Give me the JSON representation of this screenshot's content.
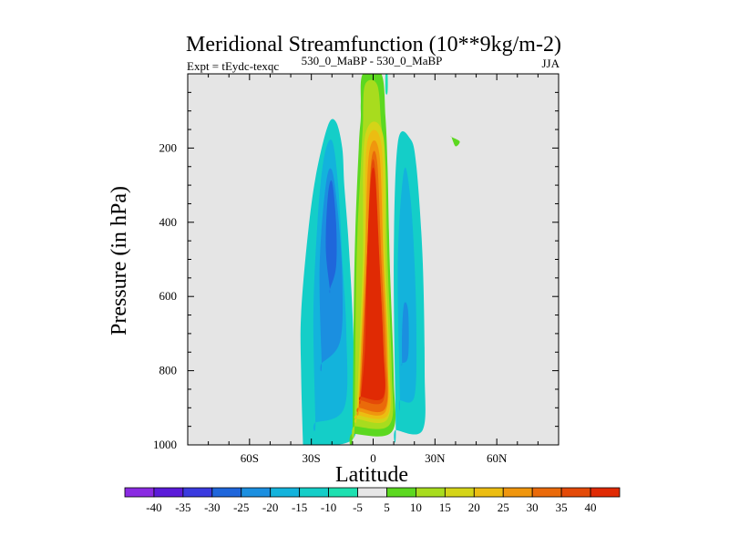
{
  "chart_data": {
    "type": "contour",
    "title": "Meridional Streamfunction (10**9kg/m-2)",
    "subtitle_left": "Expt = tEydc-texqc",
    "subtitle_center": "530_0_MaBP - 530_0_MaBP",
    "subtitle_right": "JJA",
    "xlabel": "Latitude",
    "ylabel": "Pressure (in hPa)",
    "xlim": [
      -90,
      90
    ],
    "ylim": [
      1000,
      0
    ],
    "xticks": [
      {
        "value": -60,
        "label": "60S"
      },
      {
        "value": -30,
        "label": "30S"
      },
      {
        "value": 0,
        "label": "0"
      },
      {
        "value": 30,
        "label": "30N"
      },
      {
        "value": 60,
        "label": "60N"
      }
    ],
    "yticks": [
      {
        "value": 200,
        "label": "200"
      },
      {
        "value": 400,
        "label": "400"
      },
      {
        "value": 600,
        "label": "600"
      },
      {
        "value": 800,
        "label": "800"
      },
      {
        "value": 1000,
        "label": "1000"
      }
    ],
    "background_color": "#e5e5e5",
    "colorbar": {
      "labels": [
        "-40",
        "-35",
        "-30",
        "-25",
        "-20",
        "-15",
        "-10",
        "-5",
        "5",
        "10",
        "15",
        "20",
        "25",
        "30",
        "35",
        "40"
      ],
      "colors": [
        "#8a2be2",
        "#5b1bd9",
        "#3a3adf",
        "#1f66db",
        "#1b8fe0",
        "#13b3dc",
        "#14cec8",
        "#1de0b0",
        "#e6e6e6",
        "#5cd820",
        "#a8dc1e",
        "#d4d418",
        "#ecbd12",
        "#f0960e",
        "#ea6a0a",
        "#e44a08",
        "#e02a04"
      ]
    },
    "cells": [
      {
        "name": "southern-cell-outer",
        "level": -10,
        "color": "#14cec8",
        "lat": [
          -34,
          -10,
          -9,
          -10,
          -12,
          -14,
          -15,
          -18,
          -22,
          -28,
          -32,
          -35,
          -35,
          -34
        ],
        "p": [
          1000,
          985,
          850,
          650,
          450,
          300,
          200,
          130,
          140,
          280,
          450,
          650,
          800,
          1000
        ]
      },
      {
        "name": "southern-cell-mid",
        "level": -15,
        "color": "#13b3dc",
        "lat": [
          -28,
          -14,
          -13,
          -15,
          -17,
          -20,
          -24,
          -27,
          -29,
          -28
        ],
        "p": [
          940,
          900,
          700,
          500,
          300,
          180,
          230,
          400,
          650,
          940
        ]
      },
      {
        "name": "southern-cell-inner",
        "level": -20,
        "color": "#1b8fe0",
        "lat": [
          -25,
          -16,
          -15,
          -17,
          -20,
          -23,
          -26,
          -25
        ],
        "p": [
          780,
          720,
          550,
          380,
          260,
          300,
          520,
          780
        ]
      },
      {
        "name": "southern-cell-core",
        "level": -25,
        "color": "#1f66db",
        "lat": [
          -21,
          -18,
          -18,
          -20,
          -22,
          -23,
          -21
        ],
        "p": [
          580,
          520,
          400,
          290,
          330,
          470,
          580
        ]
      },
      {
        "name": "equatorial-cell-5",
        "level": 5,
        "color": "#5cd820",
        "lat": [
          -10,
          9,
          10,
          8,
          7,
          6,
          4,
          -5,
          -6,
          -6,
          -7,
          -9,
          -10
        ],
        "p": [
          970,
          965,
          820,
          500,
          250,
          120,
          0,
          0,
          80,
          120,
          200,
          500,
          970
        ]
      },
      {
        "name": "equatorial-cell-10",
        "level": 10,
        "color": "#a8dc1e",
        "lat": [
          -9,
          8,
          9,
          7,
          6,
          4,
          2,
          -4,
          -5,
          -6,
          -8,
          -9
        ],
        "p": [
          950,
          945,
          800,
          500,
          250,
          140,
          30,
          30,
          140,
          250,
          500,
          950
        ]
      },
      {
        "name": "equatorial-cell-15",
        "level": 15,
        "color": "#d4d418",
        "lat": [
          -8,
          7,
          8,
          6,
          5,
          -4,
          -5,
          -7,
          -8
        ],
        "p": [
          930,
          930,
          780,
          500,
          170,
          170,
          500,
          780,
          930
        ]
      },
      {
        "name": "equatorial-cell-20",
        "level": 20,
        "color": "#ecbd12",
        "lat": [
          -8,
          7,
          7,
          5,
          4,
          -3,
          -4,
          -6,
          -8
        ],
        "p": [
          920,
          920,
          780,
          500,
          190,
          190,
          500,
          780,
          920
        ]
      },
      {
        "name": "equatorial-cell-25",
        "level": 25,
        "color": "#f0960e",
        "lat": [
          -7,
          6,
          7,
          5,
          3,
          -2,
          -4,
          -6,
          -7
        ],
        "p": [
          910,
          910,
          760,
          500,
          215,
          215,
          500,
          760,
          910
        ]
      },
      {
        "name": "equatorial-cell-30",
        "level": 30,
        "color": "#ea6a0a",
        "lat": [
          -7,
          6,
          6,
          4,
          2,
          -1,
          -3,
          -5,
          -7
        ],
        "p": [
          900,
          900,
          740,
          500,
          240,
          240,
          500,
          740,
          900
        ]
      },
      {
        "name": "equatorial-cell-35",
        "level": 35,
        "color": "#e44a08",
        "lat": [
          -6,
          5,
          5,
          3,
          1,
          -1,
          -3,
          -5,
          -6
        ],
        "p": [
          880,
          880,
          740,
          500,
          260,
          260,
          500,
          740,
          880
        ]
      },
      {
        "name": "equatorial-cell-40",
        "level": 40,
        "color": "#e02a04",
        "lat": [
          -6,
          5,
          5,
          3,
          1,
          -1,
          -3,
          -4,
          -6
        ],
        "p": [
          870,
          870,
          740,
          500,
          280,
          280,
          500,
          740,
          870
        ]
      },
      {
        "name": "northern-cell-outer",
        "level": -10,
        "color": "#14cec8",
        "lat": [
          11,
          24,
          25,
          24,
          21,
          18,
          12,
          10,
          11
        ],
        "p": [
          960,
          960,
          800,
          500,
          250,
          175,
          185,
          500,
          960
        ]
      },
      {
        "name": "northern-cell-inner",
        "level": -15,
        "color": "#13b3dc",
        "lat": [
          13,
          20,
          21,
          20,
          18,
          15,
          12,
          13
        ],
        "p": [
          880,
          870,
          700,
          500,
          330,
          260,
          500,
          880
        ]
      },
      {
        "name": "northern-cell-core",
        "level": -20,
        "color": "#1b8fe0",
        "lat": [
          14,
          17,
          17,
          15,
          14,
          14
        ],
        "p": [
          780,
          760,
          640,
          620,
          700,
          780
        ]
      },
      {
        "name": "upper-thin-streak",
        "level": -5,
        "color": "#1de0b0",
        "lat": [
          6,
          7,
          7,
          6
        ],
        "p": [
          0,
          0,
          50,
          50
        ]
      },
      {
        "name": "small-patch-60n",
        "level": 5,
        "color": "#5cd820",
        "lat": [
          38,
          42,
          40,
          38
        ],
        "p": [
          170,
          182,
          195,
          170
        ]
      }
    ]
  }
}
